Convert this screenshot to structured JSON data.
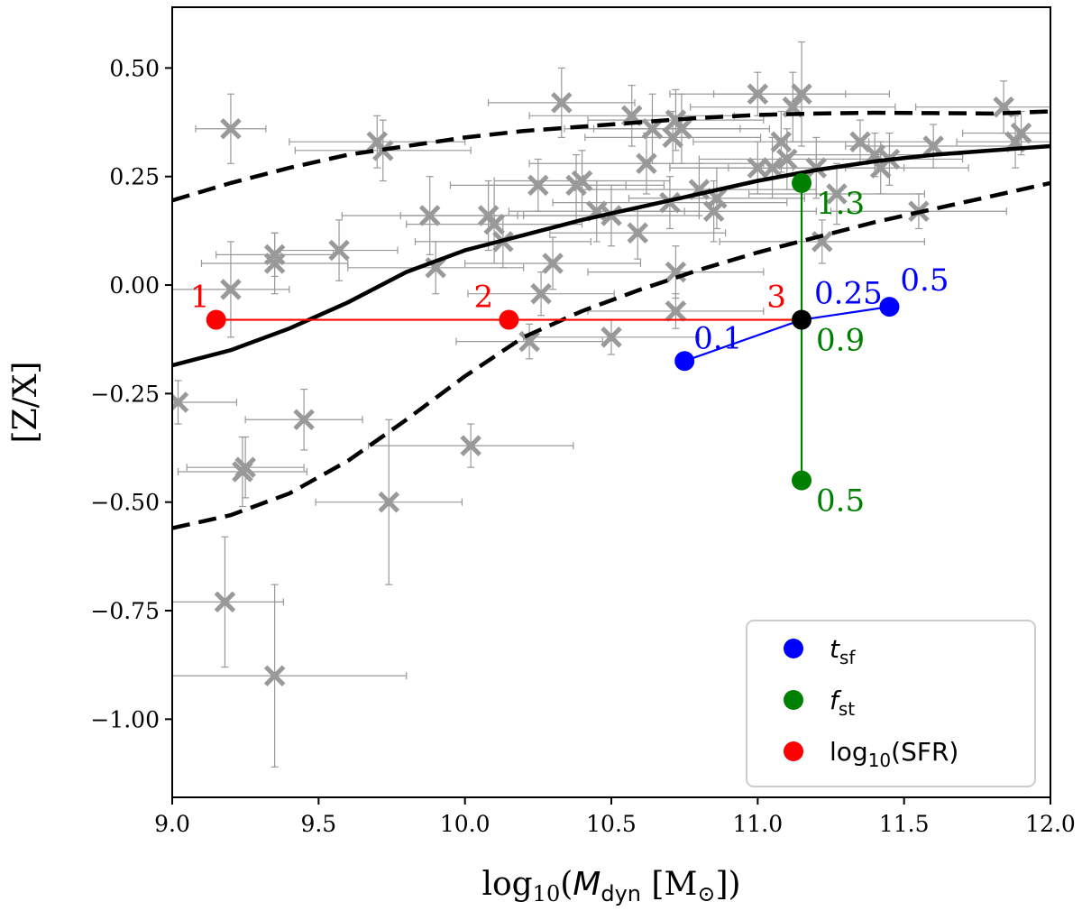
{
  "chart_data": {
    "type": "scatter",
    "title": "",
    "xlabel": {
      "prefix": "log",
      "sub": "10",
      "open": "(",
      "var": "M",
      "var_sub": "dyn",
      "unit": " [M",
      "unit_sub": "⊙",
      "close": "])"
    },
    "ylabel": "[Z/X]",
    "xlim": [
      9.0,
      12.0
    ],
    "ylim": [
      -1.18,
      0.64
    ],
    "xticks": [
      9.0,
      9.5,
      10.0,
      10.5,
      11.0,
      11.5,
      12.0
    ],
    "xtick_labels": [
      "9.0",
      "9.5",
      "10.0",
      "10.5",
      "11.0",
      "11.5",
      "12.0"
    ],
    "yticks": [
      0.5,
      0.25,
      0.0,
      -0.25,
      -0.5,
      -0.75,
      -1.0
    ],
    "ytick_labels": [
      "0.50",
      "0.25",
      "0.00",
      "−0.25",
      "−0.50",
      "−0.75",
      "−1.00"
    ],
    "grid": false,
    "legend_position": "bottom-right",
    "observations": {
      "color": "#999999",
      "points": [
        [
          9.2,
          0.36,
          0.12,
          0.08
        ],
        [
          9.2,
          -0.01,
          0.2,
          0.11
        ],
        [
          9.25,
          -0.42,
          0.2,
          0.07
        ],
        [
          9.24,
          -0.43,
          0.22,
          0.08
        ],
        [
          9.18,
          -0.73,
          0.2,
          0.15
        ],
        [
          9.35,
          -0.9,
          0.45,
          0.21
        ],
        [
          9.35,
          0.05,
          0.25,
          0.07
        ],
        [
          9.35,
          0.07,
          0.2,
          0.05
        ],
        [
          9.45,
          -0.31,
          0.2,
          0.07
        ],
        [
          9.57,
          0.08,
          0.2,
          0.07
        ],
        [
          9.7,
          0.33,
          0.3,
          0.06
        ],
        [
          9.72,
          0.31,
          0.3,
          0.07
        ],
        [
          9.74,
          -0.5,
          0.25,
          0.19
        ],
        [
          9.88,
          0.16,
          0.3,
          0.09
        ],
        [
          9.9,
          0.04,
          0.3,
          0.06
        ],
        [
          10.02,
          -0.37,
          0.35,
          0.05
        ],
        [
          10.08,
          0.16,
          0.3,
          0.08
        ],
        [
          10.1,
          0.14,
          0.3,
          0.09
        ],
        [
          10.13,
          0.1,
          0.3,
          0.06
        ],
        [
          10.22,
          -0.13,
          0.25,
          0.04
        ],
        [
          10.25,
          0.23,
          0.3,
          0.06
        ],
        [
          10.26,
          -0.02,
          0.25,
          0.05
        ],
        [
          10.3,
          0.05,
          0.3,
          0.06
        ],
        [
          10.33,
          0.42,
          0.25,
          0.08
        ],
        [
          10.38,
          0.23,
          0.3,
          0.07
        ],
        [
          10.4,
          0.24,
          0.3,
          0.07
        ],
        [
          10.45,
          0.17,
          0.3,
          0.07
        ],
        [
          10.5,
          0.16,
          0.3,
          0.07
        ],
        [
          10.5,
          -0.12,
          0.3,
          0.04
        ],
        [
          10.57,
          0.39,
          0.35,
          0.07
        ],
        [
          10.59,
          0.12,
          0.3,
          0.06
        ],
        [
          10.62,
          0.28,
          0.4,
          0.07
        ],
        [
          10.64,
          0.36,
          0.3,
          0.08
        ],
        [
          10.7,
          0.19,
          0.4,
          0.06
        ],
        [
          10.71,
          0.34,
          0.3,
          0.06
        ],
        [
          10.72,
          0.38,
          0.3,
          0.07
        ],
        [
          10.72,
          0.03,
          0.3,
          0.06
        ],
        [
          10.72,
          -0.06,
          0.3,
          0.04
        ],
        [
          10.74,
          0.36,
          0.3,
          0.08
        ],
        [
          10.8,
          0.22,
          0.4,
          0.06
        ],
        [
          10.85,
          0.17,
          0.35,
          0.07
        ],
        [
          10.86,
          0.2,
          0.3,
          0.07
        ],
        [
          11.0,
          0.44,
          0.3,
          0.05
        ],
        [
          11.0,
          0.27,
          0.3,
          0.06
        ],
        [
          11.05,
          0.27,
          0.35,
          0.07
        ],
        [
          11.08,
          0.33,
          0.3,
          0.07
        ],
        [
          11.1,
          0.29,
          0.3,
          0.07
        ],
        [
          11.12,
          0.41,
          0.35,
          0.08
        ],
        [
          11.15,
          0.44,
          0.3,
          0.12
        ],
        [
          11.2,
          0.27,
          0.3,
          0.07
        ],
        [
          11.22,
          0.1,
          0.35,
          0.05
        ],
        [
          11.27,
          0.21,
          0.3,
          0.07
        ],
        [
          11.35,
          0.33,
          0.25,
          0.05
        ],
        [
          11.4,
          0.3,
          0.3,
          0.05
        ],
        [
          11.42,
          0.27,
          0.3,
          0.06
        ],
        [
          11.45,
          0.29,
          0.25,
          0.06
        ],
        [
          11.55,
          0.17,
          0.3,
          0.04
        ],
        [
          11.6,
          0.32,
          0.3,
          0.05
        ],
        [
          11.84,
          0.41,
          0.3,
          0.06
        ],
        [
          11.88,
          0.33,
          0.2,
          0.06
        ],
        [
          11.9,
          0.35,
          0.2,
          0.05
        ],
        [
          9.02,
          -0.27,
          0.2,
          0.05
        ]
      ]
    },
    "relations": {
      "color": "#000000",
      "median": [
        [
          9.0,
          -0.185
        ],
        [
          9.2,
          -0.15
        ],
        [
          9.4,
          -0.1
        ],
        [
          9.6,
          -0.04
        ],
        [
          9.8,
          0.03
        ],
        [
          10.0,
          0.08
        ],
        [
          10.2,
          0.115
        ],
        [
          10.4,
          0.15
        ],
        [
          10.6,
          0.18
        ],
        [
          10.8,
          0.21
        ],
        [
          11.0,
          0.24
        ],
        [
          11.2,
          0.265
        ],
        [
          11.4,
          0.285
        ],
        [
          11.6,
          0.3
        ],
        [
          11.8,
          0.31
        ],
        [
          12.0,
          0.32
        ]
      ],
      "upper": [
        [
          9.0,
          0.195
        ],
        [
          9.2,
          0.235
        ],
        [
          9.4,
          0.27
        ],
        [
          9.6,
          0.3
        ],
        [
          9.8,
          0.32
        ],
        [
          10.0,
          0.34
        ],
        [
          10.2,
          0.355
        ],
        [
          10.4,
          0.365
        ],
        [
          10.6,
          0.375
        ],
        [
          10.8,
          0.385
        ],
        [
          11.0,
          0.392
        ],
        [
          11.2,
          0.395
        ],
        [
          11.4,
          0.397
        ],
        [
          11.6,
          0.396
        ],
        [
          11.8,
          0.395
        ],
        [
          12.0,
          0.4
        ]
      ],
      "lower": [
        [
          9.0,
          -0.56
        ],
        [
          9.2,
          -0.53
        ],
        [
          9.4,
          -0.48
        ],
        [
          9.6,
          -0.405
        ],
        [
          9.8,
          -0.31
        ],
        [
          10.0,
          -0.21
        ],
        [
          10.2,
          -0.12
        ],
        [
          10.4,
          -0.06
        ],
        [
          10.6,
          -0.01
        ],
        [
          10.8,
          0.035
        ],
        [
          11.0,
          0.075
        ],
        [
          11.2,
          0.11
        ],
        [
          11.4,
          0.145
        ],
        [
          11.6,
          0.175
        ],
        [
          11.8,
          0.205
        ],
        [
          12.0,
          0.235
        ]
      ]
    },
    "reference_point": {
      "x": 11.15,
      "y": -0.08,
      "color": "#000000"
    },
    "series": [
      {
        "name": "t_sf",
        "color": "#0000ff",
        "points": [
          {
            "x": 10.75,
            "y": -0.175,
            "label": "0.1"
          },
          {
            "x": 11.15,
            "y": -0.08,
            "label": "0.25"
          },
          {
            "x": 11.45,
            "y": -0.05,
            "label": "0.5"
          }
        ]
      },
      {
        "name": "f_st",
        "color": "#008000",
        "points": [
          {
            "x": 11.15,
            "y": -0.45,
            "label": "0.5"
          },
          {
            "x": 11.15,
            "y": -0.08,
            "label": "0.9"
          },
          {
            "x": 11.15,
            "y": 0.235,
            "label": "1.3"
          }
        ]
      },
      {
        "name": "log10(SFR)",
        "color": "#ff0000",
        "points": [
          {
            "x": 9.15,
            "y": -0.08,
            "label": "1"
          },
          {
            "x": 10.15,
            "y": -0.08,
            "label": "2"
          },
          {
            "x": 11.15,
            "y": -0.08,
            "label": "3"
          }
        ]
      }
    ],
    "legend": [
      {
        "key": "t_sf",
        "main": "t",
        "sub": "sf",
        "color": "#0000ff"
      },
      {
        "key": "f_st",
        "main": "f",
        "sub": "st",
        "color": "#008000"
      },
      {
        "key": "log10(SFR)",
        "prefix": "log",
        "sub": "10",
        "rest": "(SFR)",
        "color": "#ff0000"
      }
    ]
  }
}
